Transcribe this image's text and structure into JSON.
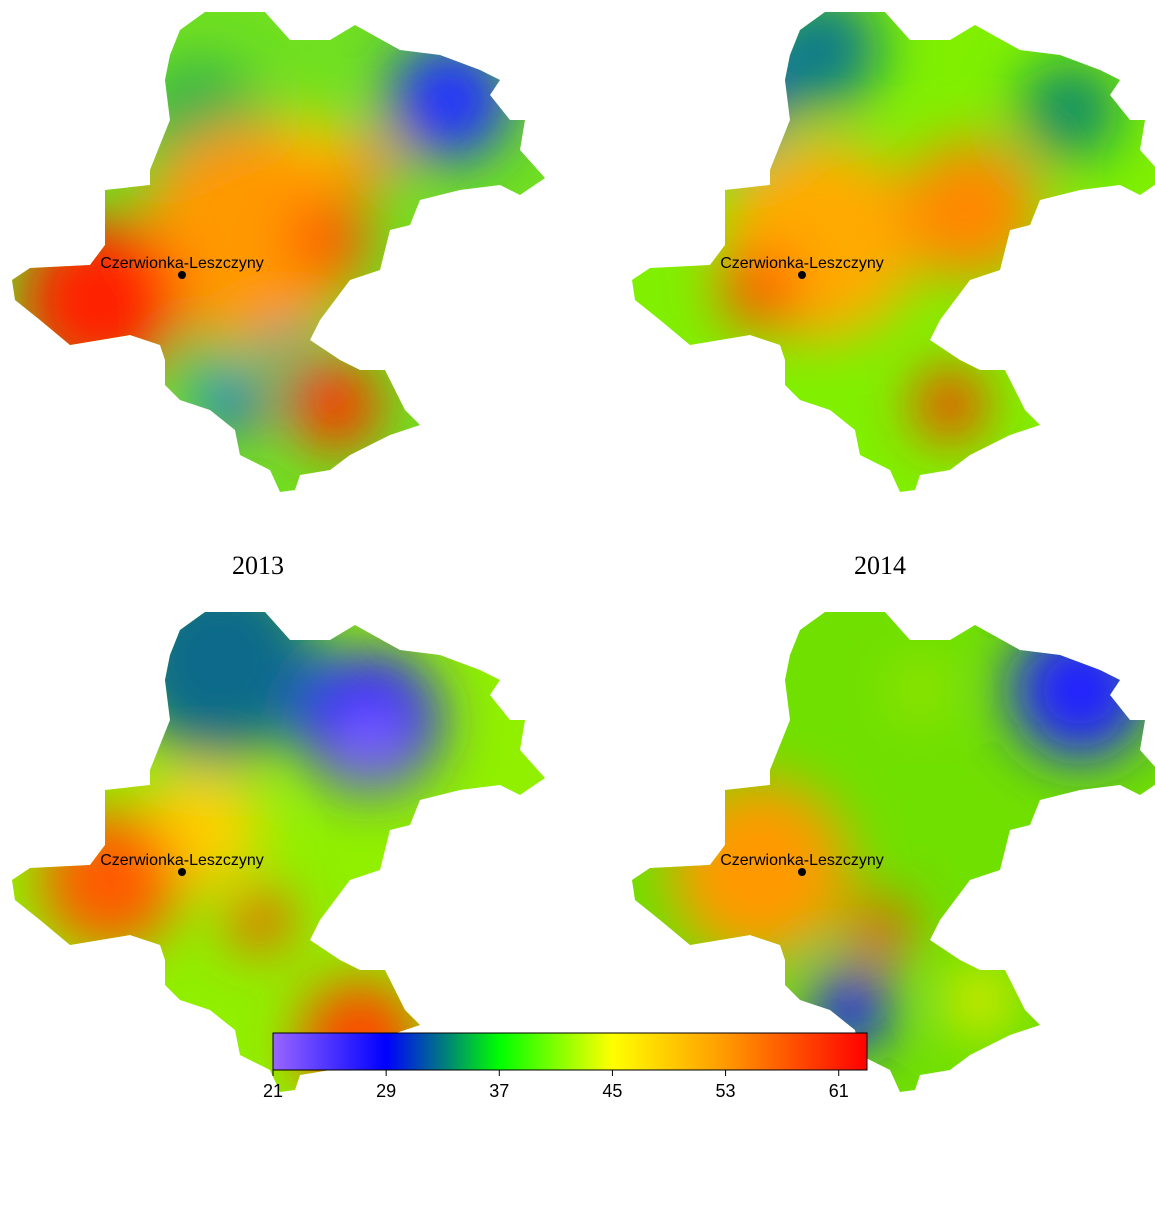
{
  "panels": [
    {
      "label": "Czerwionka-Leszczyny"
    },
    {
      "label": "Czerwionka-Leszczyny"
    },
    {
      "label": "Czerwionka-Leszczyny"
    },
    {
      "label": "Czerwionka-Leszczyny"
    }
  ],
  "captions": [
    "2013",
    "2014"
  ],
  "colorbar": {
    "range": [
      21,
      63
    ],
    "ticks": [
      21,
      29,
      37,
      45,
      53,
      61
    ],
    "stops": [
      {
        "value": 21,
        "color": "#9966ff"
      },
      {
        "value": 29,
        "color": "#0000ff"
      },
      {
        "value": 33,
        "color": "#007a80"
      },
      {
        "value": 37,
        "color": "#00ff00"
      },
      {
        "value": 41,
        "color": "#80ff00"
      },
      {
        "value": 45,
        "color": "#ffff00"
      },
      {
        "value": 53,
        "color": "#ff9900"
      },
      {
        "value": 63,
        "color": "#ff0000"
      }
    ]
  }
}
